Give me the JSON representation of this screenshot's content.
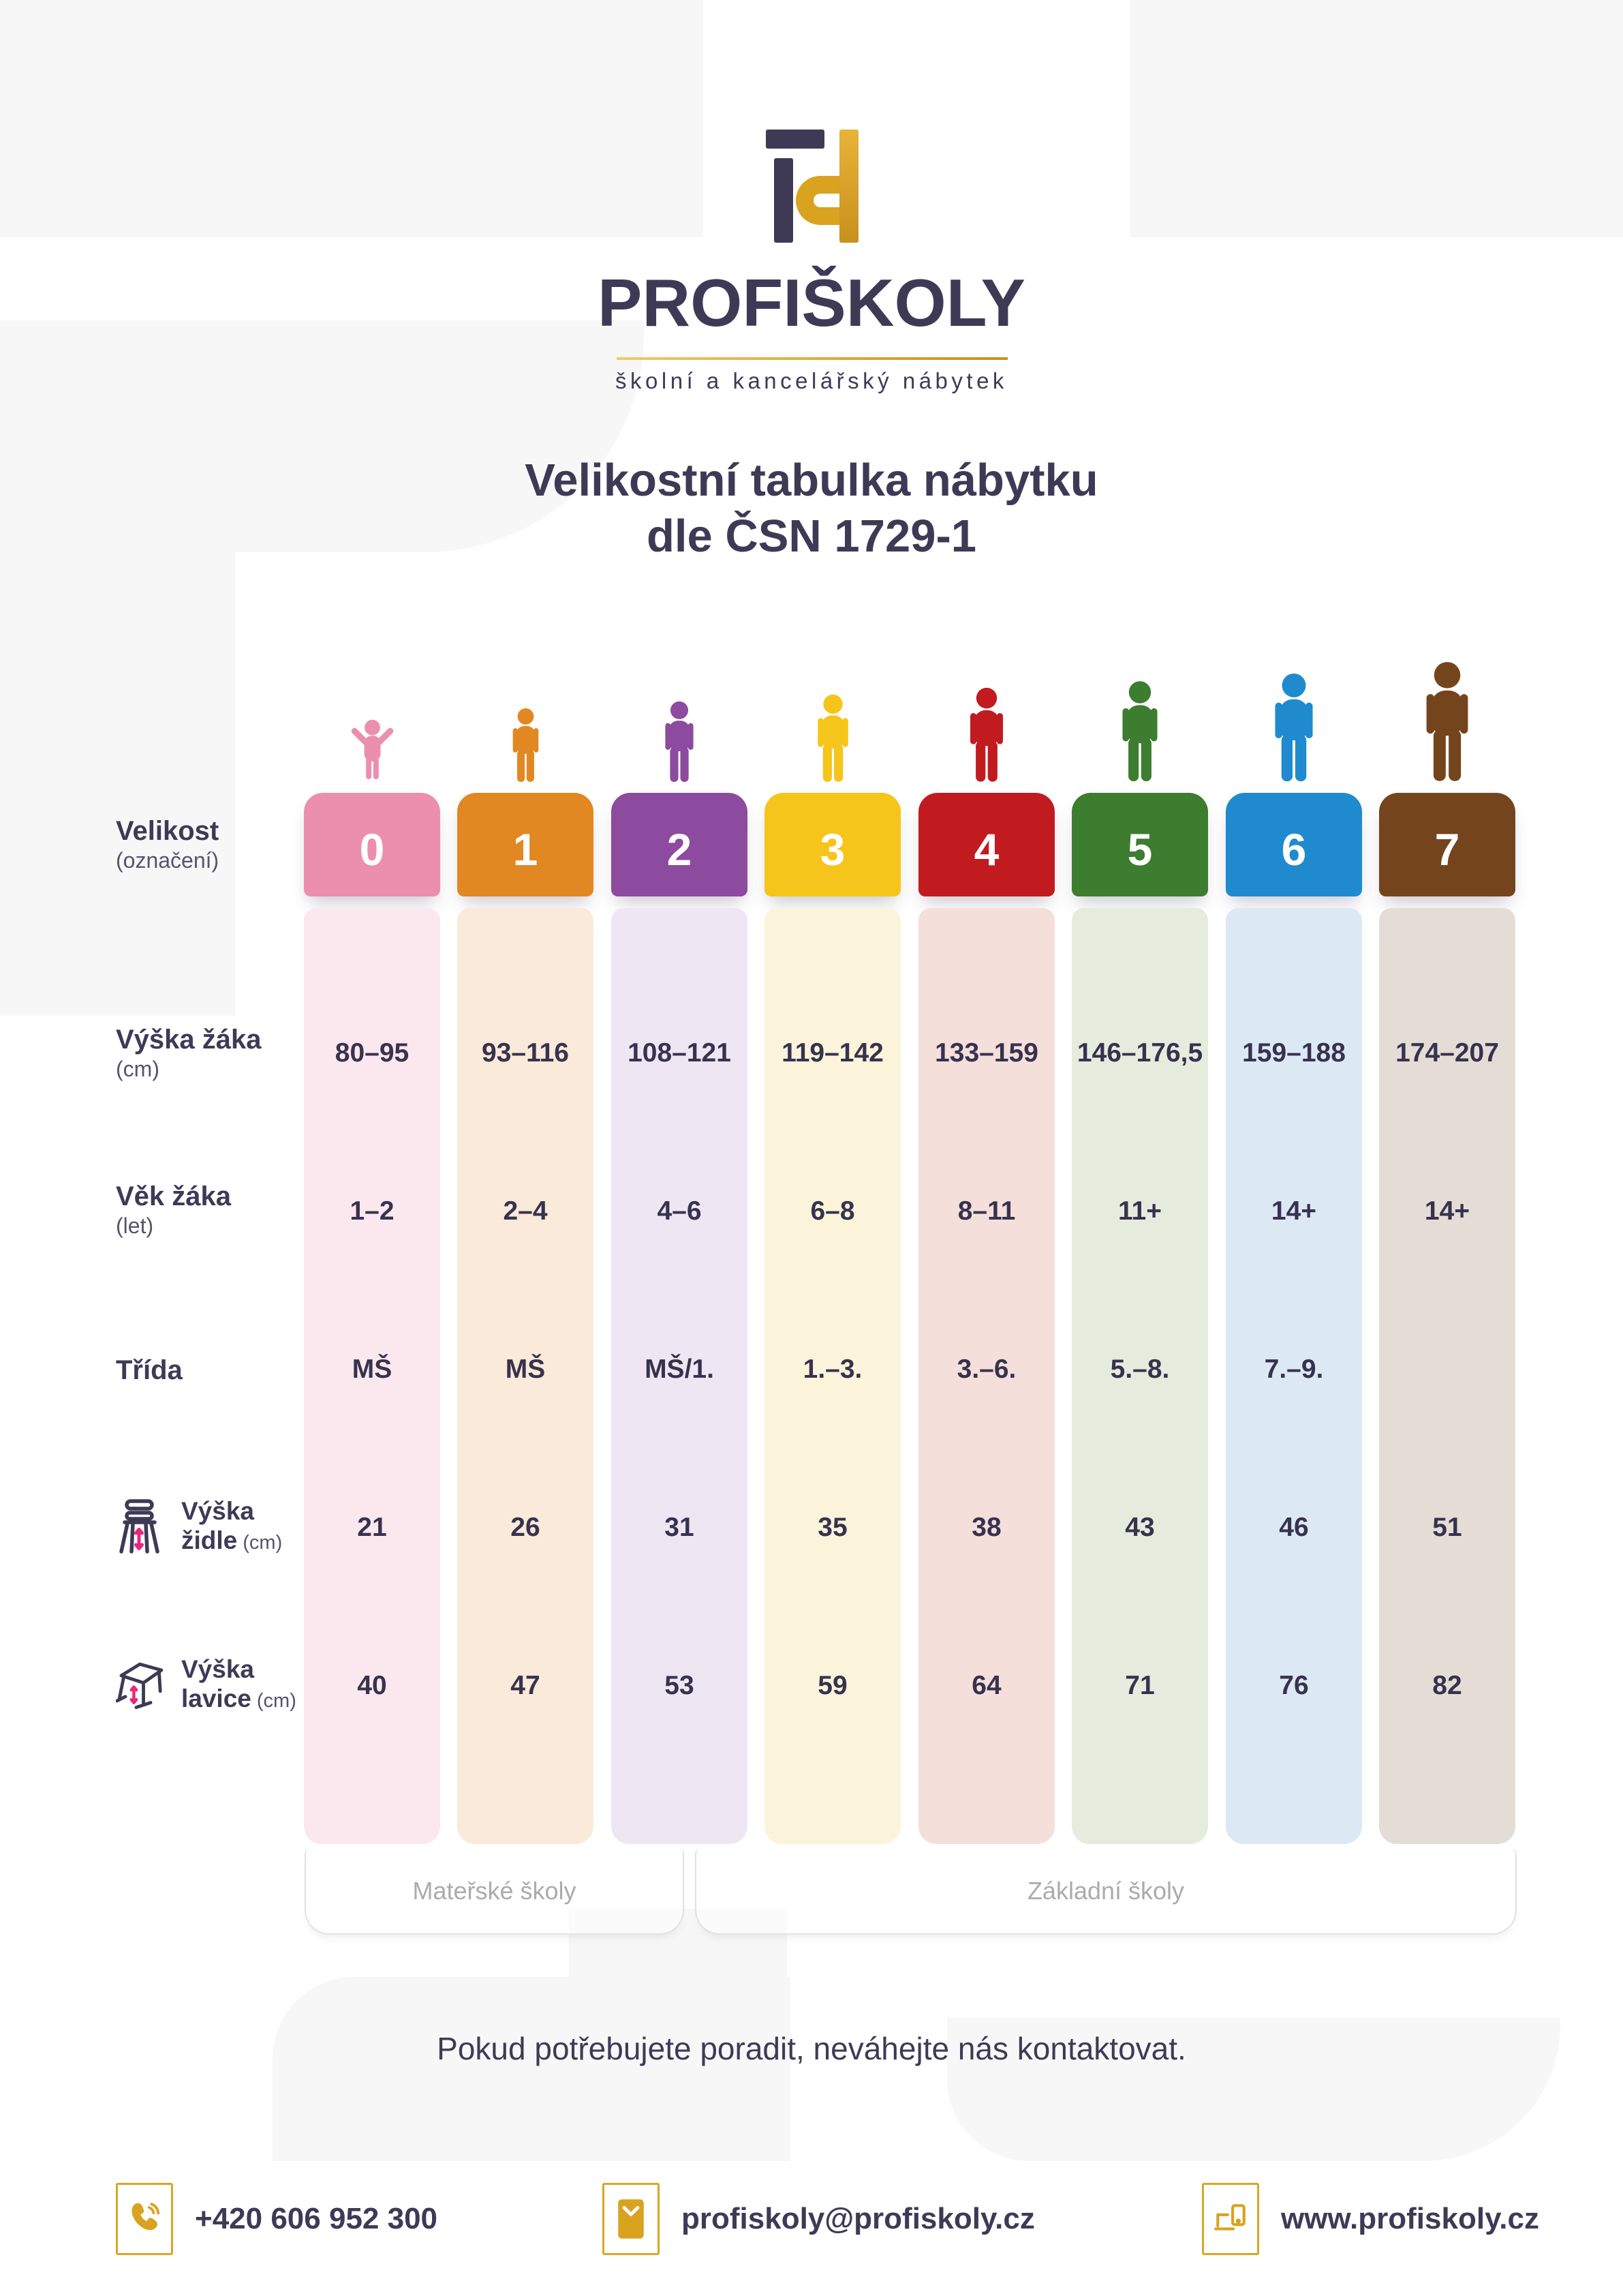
{
  "brand": {
    "name": "PROFIŠKOLY",
    "tagline": "školní a kancelářský nábytek",
    "logo_icon": "profiskoly-monogram-icon",
    "colors": {
      "navy": "#3E3A56",
      "gold": "#D9A21F"
    }
  },
  "title": {
    "line1": "Velikostní tabulka nábytku",
    "line2": "dle ČSN 1729-1"
  },
  "table": {
    "row_labels": [
      {
        "id": "velikost",
        "line1": "Velikost",
        "unit": "(označení)",
        "icon": null
      },
      {
        "id": "vyska-zaka",
        "line1": "Výška žáka",
        "unit": "(cm)",
        "icon": null
      },
      {
        "id": "vek-zaka",
        "line1": "Věk žáka",
        "unit": "(let)",
        "icon": null
      },
      {
        "id": "trida",
        "line1": "Třída",
        "unit": "",
        "icon": null
      },
      {
        "id": "vyska-zidle",
        "line1": "Výška",
        "line2": "židle",
        "unit": "(cm)",
        "icon": "chair-height-icon"
      },
      {
        "id": "vyska-lavice",
        "line1": "Výška",
        "line2": "lavice",
        "unit": "(cm)",
        "icon": "desk-height-icon"
      }
    ],
    "columns": [
      {
        "size": "0",
        "person": "toddler",
        "color": "#EC8FAF",
        "tint": "#FBE8EF",
        "values": [
          "80–95",
          "1–2",
          "MŠ",
          "21",
          "40"
        ]
      },
      {
        "size": "1",
        "person": "standing",
        "color": "#E28822",
        "tint": "#F9EAD9",
        "values": [
          "93–116",
          "2–4",
          "MŠ",
          "26",
          "47"
        ]
      },
      {
        "size": "2",
        "person": "standing",
        "color": "#8C4B9E",
        "tint": "#EFE6F3",
        "values": [
          "108–121",
          "4–6",
          "MŠ/1.",
          "31",
          "53"
        ]
      },
      {
        "size": "3",
        "person": "standing",
        "color": "#F6C51C",
        "tint": "#FCF4DA",
        "values": [
          "119–142",
          "6–8",
          "1.–3.",
          "35",
          "59"
        ]
      },
      {
        "size": "4",
        "person": "standing",
        "color": "#C11B20",
        "tint": "#F4DFDB",
        "values": [
          "133–159",
          "8–11",
          "3.–6.",
          "38",
          "64"
        ]
      },
      {
        "size": "5",
        "person": "standing",
        "color": "#3C7D2F",
        "tint": "#E5ECDE",
        "values": [
          "146–176,5",
          "11+",
          "5.–8.",
          "43",
          "71"
        ]
      },
      {
        "size": "6",
        "person": "standing",
        "color": "#1F8BCE",
        "tint": "#DCE9F5",
        "values": [
          "159–188",
          "14+",
          "7.–9.",
          "46",
          "76"
        ]
      },
      {
        "size": "7",
        "person": "standing",
        "color": "#74451D",
        "tint": "#E4DDD6",
        "values": [
          "174–207",
          "14+",
          "",
          "51",
          "82"
        ]
      }
    ],
    "groups": [
      {
        "label": "Mateřské školy"
      },
      {
        "label": "Základní školy"
      }
    ]
  },
  "contact_note": "Pokud potřebujete poradit, neváhejte nás kontaktovat.",
  "footer": [
    {
      "icon": "phone-icon",
      "text": "+420 606 952 300"
    },
    {
      "icon": "email-icon",
      "text": "profiskoly@profiskoly.cz"
    },
    {
      "icon": "website-icon",
      "text": "www.profiskoly.cz"
    }
  ]
}
